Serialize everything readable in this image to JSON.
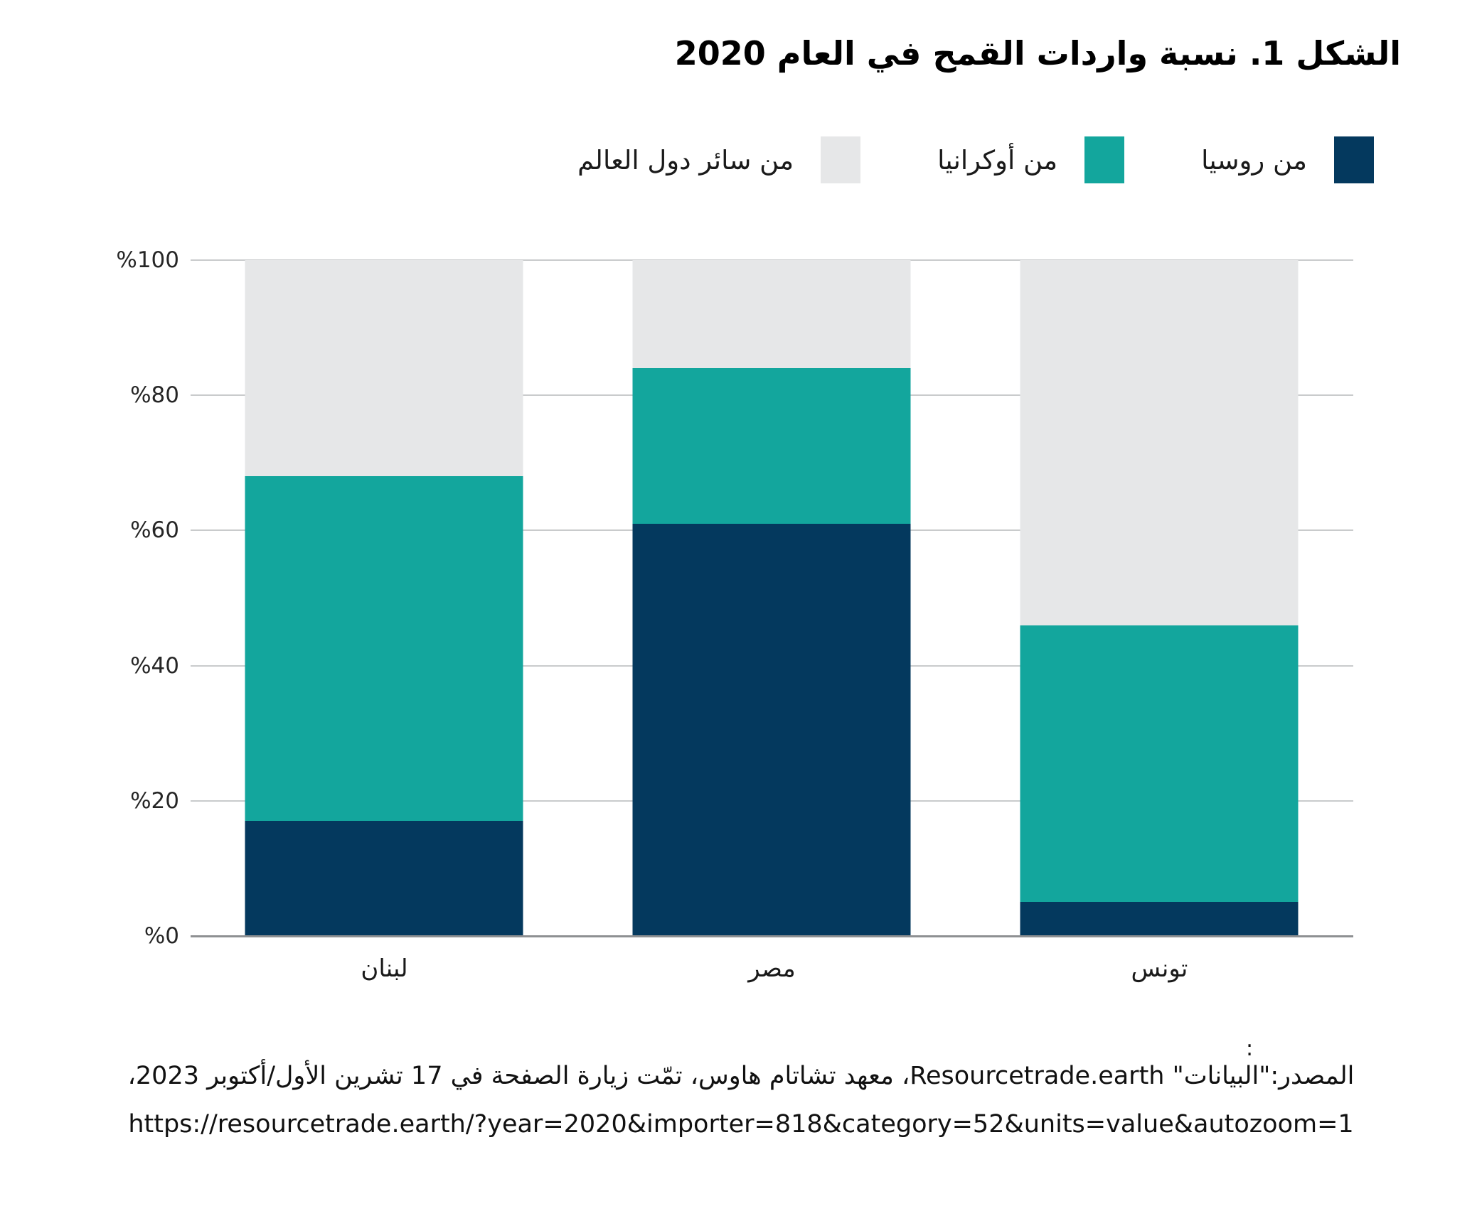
{
  "title": "الشكل 1. نسبة واردات القمح في العام 2020",
  "legend": [
    {
      "key": "russia",
      "label": "من روسيا",
      "color": "#04395e"
    },
    {
      "key": "ukraine",
      "label": "من أوكرانيا",
      "color": "#13a69d"
    },
    {
      "key": "world",
      "label": "من سائر دول العالم",
      "color": "#e6e7e8"
    }
  ],
  "chart_data": {
    "type": "bar",
    "stacked": true,
    "title": "الشكل 1. نسبة واردات القمح في العام 2020",
    "categories": [
      "لبنان",
      "مصر",
      "تونس"
    ],
    "category_keys": [
      "lebanon",
      "egypt",
      "tunisia"
    ],
    "series": [
      {
        "key": "russia",
        "name": "من روسيا",
        "color": "#04395e",
        "values": [
          17,
          61,
          5
        ]
      },
      {
        "key": "ukraine",
        "name": "من أوكرانيا",
        "color": "#13a69d",
        "values": [
          51,
          23,
          41
        ]
      },
      {
        "key": "world",
        "name": "من سائر دول العالم",
        "color": "#e6e7e8",
        "values": [
          32,
          16,
          54
        ]
      }
    ],
    "xlabel": "",
    "ylabel": "",
    "ylim": [
      0,
      100
    ],
    "yticks": [
      "%0",
      "%20",
      "%40",
      "%60",
      "%80",
      "%100"
    ],
    "ytick_values": [
      0,
      20,
      40,
      60,
      80,
      100
    ],
    "grid": true,
    "legend_position": "top-right",
    "stack_order": "bottom-to-top"
  },
  "colors": {
    "russia_navy": "#04395e",
    "ukraine_teal": "#13a69d",
    "world_gray": "#e6e7e8",
    "gridline": "#c9cbcc",
    "axis_line": "#8e9092"
  },
  "source": {
    "colon": ":",
    "line1": "المصدر:\"البيانات\" Resourcetrade.earth، معهد تشاتام هاوس، تمّت زيارة الصفحة في 17 تشرين الأول/أكتوبر 2023،",
    "url": "https://resourcetrade.earth/?year=2020&importer=818&category=52&units=value&autozoom=1"
  }
}
